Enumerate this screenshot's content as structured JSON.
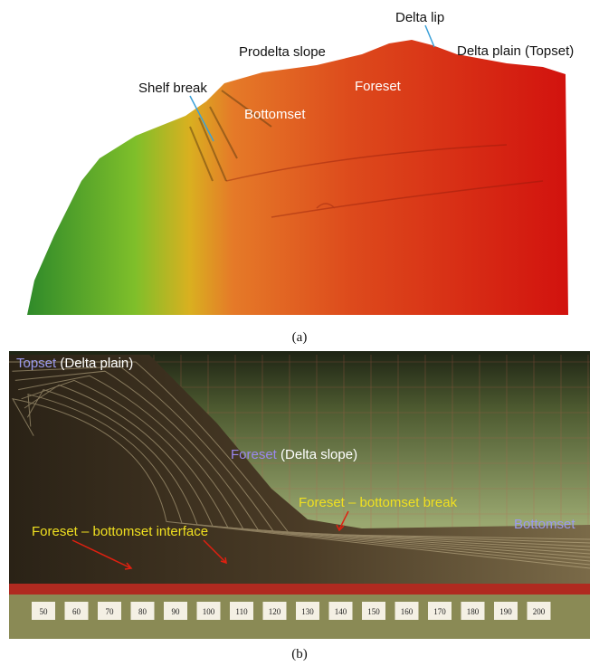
{
  "panel_a": {
    "labels": {
      "delta_lip": "Delta lip",
      "delta_plain": "Delta plain (Topset)",
      "prodelta_slope": "Prodelta slope",
      "shelf_break": "Shelf break",
      "foreset": "Foreset",
      "bottomset": "Bottomset"
    },
    "caption": "(a)"
  },
  "panel_b": {
    "labels": {
      "topset": "Topset",
      "topset_note": "(Delta plain)",
      "foreset": "Foreset",
      "foreset_note": "(Delta slope)",
      "break": "Foreset – bottomset break",
      "interface": "Foreset – bottomset interface",
      "bottomset": "Bottomset"
    },
    "ruler": [
      "50",
      "60",
      "70",
      "80",
      "90",
      "100",
      "110",
      "120",
      "130",
      "140",
      "150",
      "160",
      "170",
      "180",
      "190",
      "200"
    ],
    "caption": "(b)"
  }
}
